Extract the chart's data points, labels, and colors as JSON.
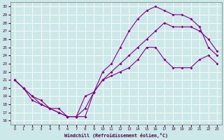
{
  "xlabel": "Windchill (Refroidissement éolien,°C)",
  "bg_color": "#cce8e8",
  "grid_color": "#aaaaaa",
  "line_color": "#880088",
  "xlim": [
    -0.5,
    23.5
  ],
  "ylim": [
    15.5,
    30.5
  ],
  "xticks": [
    0,
    1,
    2,
    3,
    4,
    5,
    6,
    7,
    8,
    9,
    10,
    11,
    12,
    13,
    14,
    15,
    16,
    17,
    18,
    19,
    20,
    21,
    22,
    23
  ],
  "yticks": [
    16,
    17,
    18,
    19,
    20,
    21,
    22,
    23,
    24,
    25,
    26,
    27,
    28,
    29,
    30
  ],
  "series1_x": [
    0,
    1,
    2,
    3,
    4,
    5,
    6,
    7,
    8,
    9,
    10,
    11,
    12,
    13,
    14,
    15,
    16,
    17,
    18,
    19,
    20,
    21,
    22,
    23
  ],
  "series1_y": [
    21,
    20,
    19,
    18,
    17.5,
    17,
    16.5,
    16.5,
    19,
    19.5,
    21,
    21.5,
    22,
    22.5,
    23.5,
    25,
    25,
    23.5,
    22.5,
    22.5,
    22.5,
    23.5,
    24,
    23
  ],
  "series2_x": [
    0,
    1,
    2,
    3,
    4,
    5,
    6,
    7,
    8,
    9,
    10,
    11,
    12,
    13,
    14,
    15,
    16,
    17,
    18,
    19,
    20,
    21,
    22,
    23
  ],
  "series2_y": [
    21,
    20,
    18.5,
    18,
    17.5,
    17,
    16.5,
    16.5,
    16.5,
    19.5,
    22,
    23,
    25,
    27,
    28.5,
    29.5,
    30,
    29.5,
    29,
    29,
    28.5,
    27.5,
    25,
    24
  ],
  "series3_x": [
    0,
    1,
    2,
    3,
    4,
    5,
    6,
    7,
    8,
    9,
    10,
    11,
    12,
    13,
    14,
    15,
    16,
    17,
    18,
    19,
    20,
    21,
    22,
    23
  ],
  "series3_y": [
    21,
    20,
    19,
    18.5,
    17.5,
    17.5,
    16.5,
    16.5,
    17.5,
    19.5,
    21,
    22,
    23,
    24,
    25,
    26,
    27,
    28,
    27.5,
    27.5,
    27.5,
    27,
    26,
    24.5
  ]
}
